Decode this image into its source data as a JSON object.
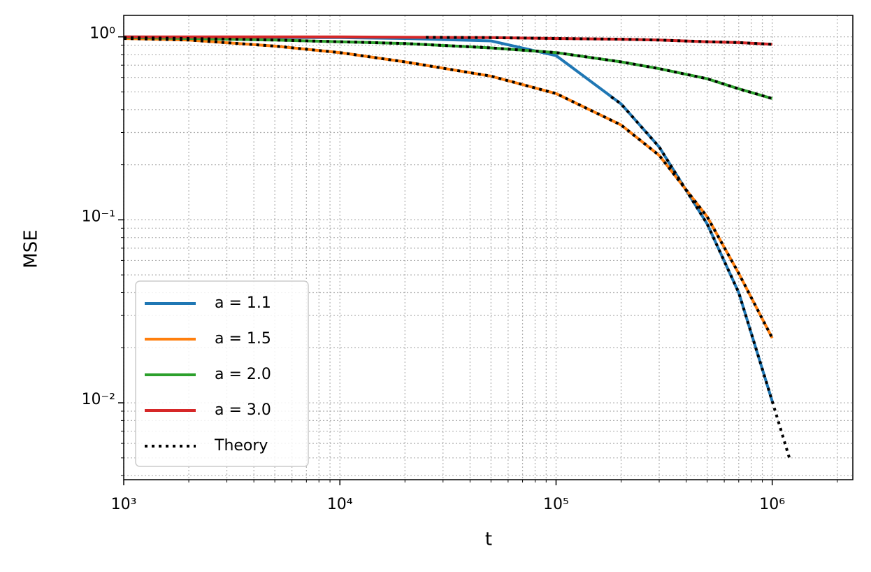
{
  "chart_data": {
    "type": "line",
    "x_label": "t",
    "y_label": "MSE",
    "log_x": true,
    "log_y": true,
    "grid": true,
    "legend": "lower left",
    "xlim": [
      1000,
      2360000
    ],
    "ylim": [
      0.0038,
      1.31
    ],
    "xticks": [
      {
        "value": 1000,
        "label": "10³"
      },
      {
        "value": 10000,
        "label": "10⁴"
      },
      {
        "value": 100000,
        "label": "10⁵"
      },
      {
        "value": 1000000,
        "label": "10⁶"
      }
    ],
    "yticks": [
      {
        "value": 0.01,
        "label": "10⁻²"
      },
      {
        "value": 0.1,
        "label": "10⁻¹"
      },
      {
        "value": 1,
        "label": "10⁰"
      }
    ],
    "series": [
      {
        "name": "a = 1.1",
        "color": "#1f77b4",
        "x": [
          1000,
          2000,
          5000,
          10000,
          20000,
          50000,
          100000,
          200000,
          300000,
          500000,
          700000,
          1000000
        ],
        "values": [
          1.0,
          0.995,
          0.99,
          0.99,
          0.98,
          0.95,
          0.79,
          0.43,
          0.25,
          0.095,
          0.04,
          0.0102
        ]
      },
      {
        "name": "a = 1.5",
        "color": "#ff7f0e",
        "x": [
          1000,
          2000,
          5000,
          10000,
          20000,
          50000,
          100000,
          200000,
          300000,
          500000,
          700000,
          1000000
        ],
        "values": [
          0.98,
          0.96,
          0.89,
          0.82,
          0.73,
          0.61,
          0.49,
          0.33,
          0.225,
          0.104,
          0.051,
          0.0226
        ]
      },
      {
        "name": "a = 2.0",
        "color": "#2ca02c",
        "x": [
          1000,
          2000,
          5000,
          10000,
          20000,
          50000,
          100000,
          200000,
          300000,
          500000,
          700000,
          1000000
        ],
        "values": [
          0.99,
          0.98,
          0.96,
          0.94,
          0.92,
          0.87,
          0.82,
          0.73,
          0.67,
          0.59,
          0.52,
          0.46
        ]
      },
      {
        "name": "a = 3.0",
        "color": "#d62728",
        "x": [
          1000,
          2000,
          5000,
          10000,
          20000,
          50000,
          100000,
          200000,
          300000,
          500000,
          700000,
          1000000
        ],
        "values": [
          1.0,
          1.0,
          1.0,
          1.0,
          0.995,
          0.99,
          0.98,
          0.97,
          0.96,
          0.94,
          0.93,
          0.91
        ]
      }
    ],
    "theory": {
      "name": "Theory",
      "color": "#000000",
      "curves": [
        {
          "x": [
            180000,
            200000,
            300000,
            500000,
            700000,
            1000000,
            1200000
          ],
          "values": [
            0.47,
            0.43,
            0.25,
            0.095,
            0.04,
            0.0102,
            0.005
          ]
        },
        {
          "x": [
            1000,
            2000,
            5000,
            10000,
            20000,
            50000,
            100000,
            200000,
            300000,
            500000,
            700000,
            1000000
          ],
          "values": [
            0.98,
            0.96,
            0.89,
            0.82,
            0.73,
            0.61,
            0.49,
            0.33,
            0.225,
            0.104,
            0.051,
            0.0226
          ]
        },
        {
          "x": [
            1000,
            2000,
            5000,
            10000,
            20000,
            50000,
            100000,
            200000,
            300000,
            500000,
            700000,
            1000000
          ],
          "values": [
            0.99,
            0.98,
            0.96,
            0.94,
            0.92,
            0.87,
            0.82,
            0.73,
            0.67,
            0.59,
            0.52,
            0.46
          ]
        },
        {
          "x": [
            25000,
            50000,
            100000,
            200000,
            300000,
            500000,
            700000,
            1000000
          ],
          "values": [
            0.995,
            0.99,
            0.98,
            0.97,
            0.96,
            0.94,
            0.93,
            0.91
          ]
        }
      ]
    }
  }
}
